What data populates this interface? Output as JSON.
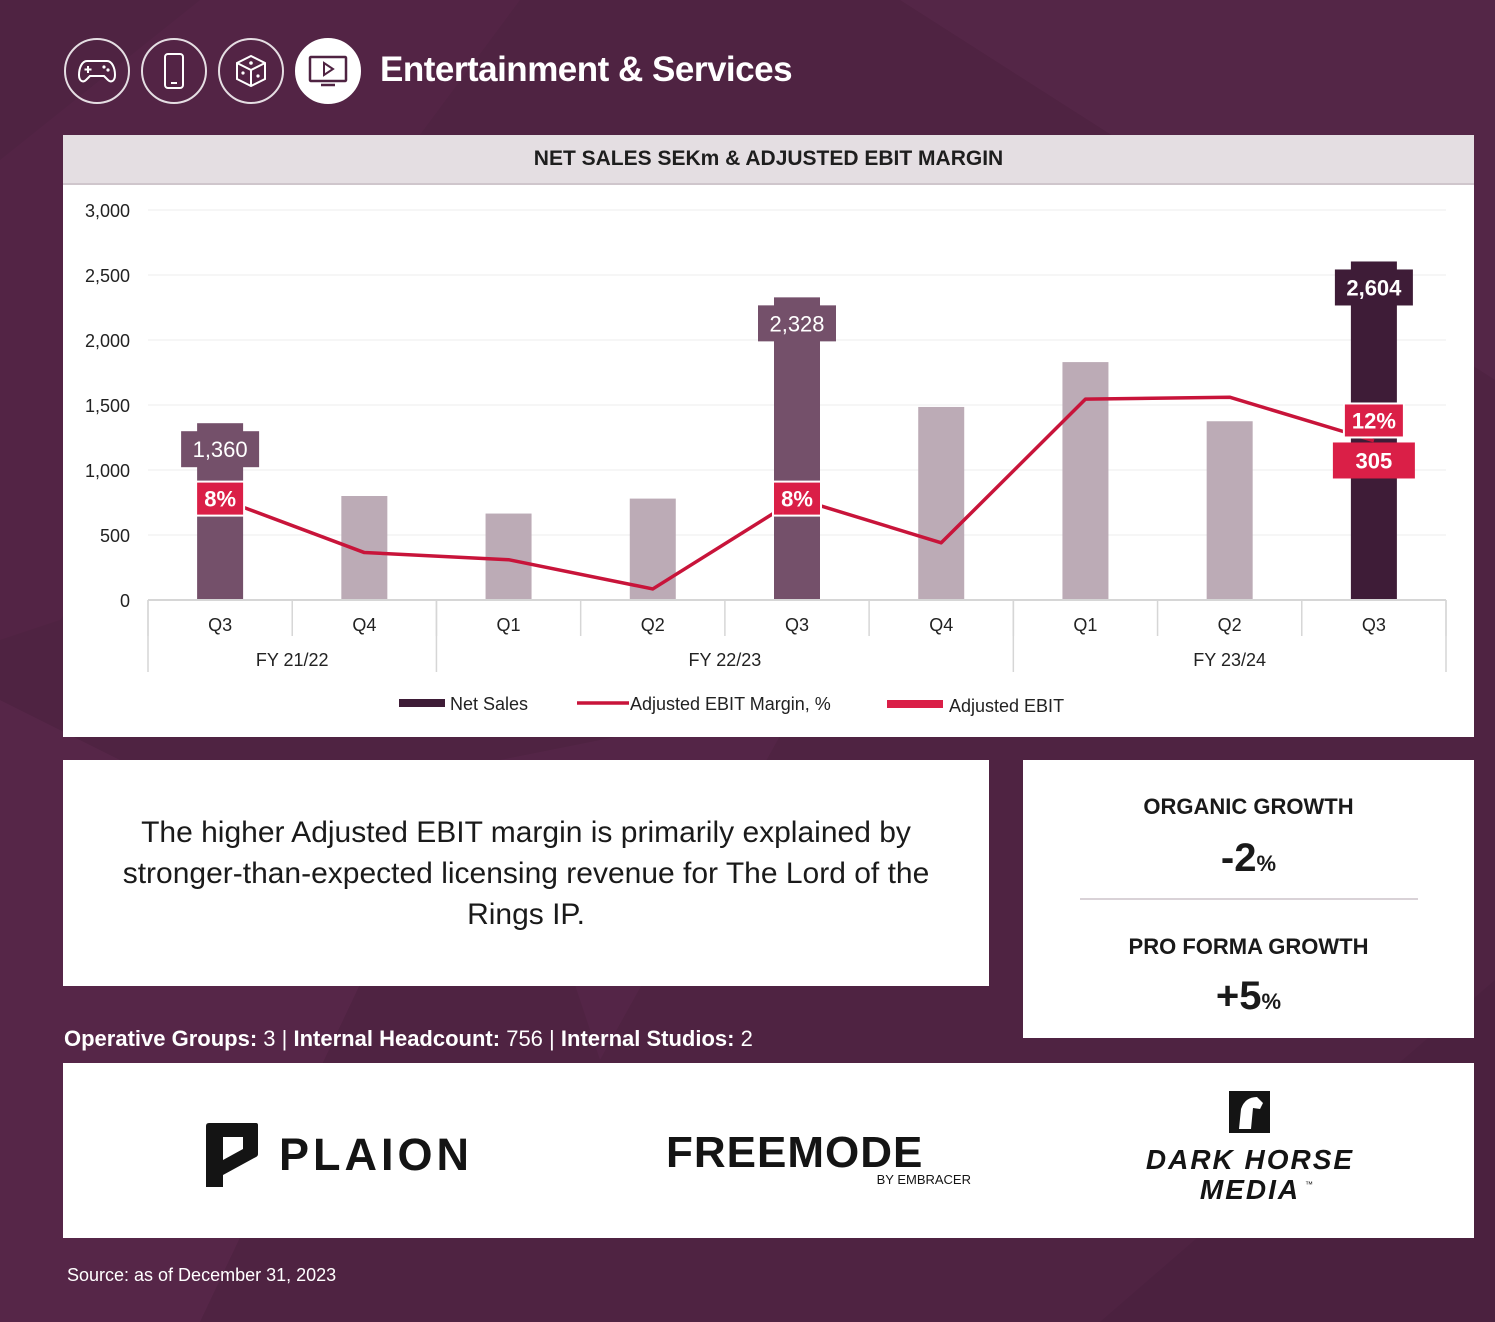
{
  "header": {
    "title": "Entertainment & Services",
    "category_icons": [
      "gamepad-icon",
      "mobile-phone-icon",
      "dice-icon",
      "tv-play-icon"
    ],
    "active_icon": "tv-play-icon"
  },
  "colors": {
    "background": "#4f2342",
    "net_sales_dark": "#3e1c37",
    "net_sales_mid": "#74506a",
    "net_sales_light": "#bcabb6",
    "ebit_red": "#c8143a",
    "ebit_label_bg": "#da1f47"
  },
  "chart_data": {
    "type": "bar",
    "title": "NET SALES SEKm & ADJUSTED EBIT MARGIN",
    "categories": [
      "Q3",
      "Q4",
      "Q1",
      "Q2",
      "Q3",
      "Q4",
      "Q1",
      "Q2",
      "Q3"
    ],
    "fiscal_groups": [
      {
        "label": "FY 21/22",
        "quarters": 2
      },
      {
        "label": "FY 22/23",
        "quarters": 4
      },
      {
        "label": "FY 23/24",
        "quarters": 3
      }
    ],
    "ylim": [
      0,
      3000
    ],
    "yticks": [
      "0",
      "500",
      "1,000",
      "1,500",
      "2,000",
      "2,500",
      "3,000"
    ],
    "grid": true,
    "series": [
      {
        "name": "Net Sales",
        "type": "bar",
        "values": [
          1360,
          800,
          665,
          780,
          2328,
          1485,
          1830,
          1375,
          2604
        ],
        "shade": [
          "mid",
          "light",
          "light",
          "light",
          "mid",
          "light",
          "light",
          "light",
          "dark"
        ]
      },
      {
        "name": "Adjusted EBIT Margin, %",
        "type": "line",
        "plotted_values": [
          780,
          365,
          310,
          85,
          780,
          440,
          1545,
          1560,
          1225
        ]
      },
      {
        "name": "Adjusted EBIT",
        "type": "label"
      }
    ],
    "data_labels": [
      {
        "index": 0,
        "text": "1,360",
        "kind": "net_sales"
      },
      {
        "index": 0,
        "text": "8%",
        "kind": "margin"
      },
      {
        "index": 4,
        "text": "2,328",
        "kind": "net_sales"
      },
      {
        "index": 4,
        "text": "8%",
        "kind": "margin"
      },
      {
        "index": 8,
        "text": "2,604",
        "kind": "net_sales_dark"
      },
      {
        "index": 8,
        "text": "12%",
        "kind": "margin"
      },
      {
        "index": 8,
        "text": "305",
        "kind": "ebit"
      }
    ],
    "legend": [
      "Net Sales",
      "Adjusted EBIT Margin, %",
      "Adjusted EBIT"
    ],
    "legend_position": "bottom"
  },
  "commentary": {
    "text": "The higher Adjusted EBIT margin is primarily explained by stronger-than-expected licensing revenue for The Lord of the Rings IP."
  },
  "growth": {
    "organic_label": "ORGANIC GROWTH",
    "organic_value": "-2",
    "pro_forma_label": "PRO FORMA GROWTH",
    "pro_forma_value": "+5",
    "unit": "%"
  },
  "stats": {
    "groups_label": "Operative Groups:",
    "groups_value": "3",
    "headcount_label": "Internal Headcount:",
    "headcount_value": "756",
    "studios_label": "Internal Studios:",
    "studios_value": "2",
    "separator": "|"
  },
  "logos": {
    "plaion": "PLAION",
    "freemode": "FREEMODE",
    "freemode_sub": "BY EMBRACER",
    "darkhorse_line1": "DARK HORSE",
    "darkhorse_line2": "MEDIA",
    "darkhorse_tm": "™"
  },
  "footer": {
    "source": "Source: as of December 31, 2023"
  }
}
